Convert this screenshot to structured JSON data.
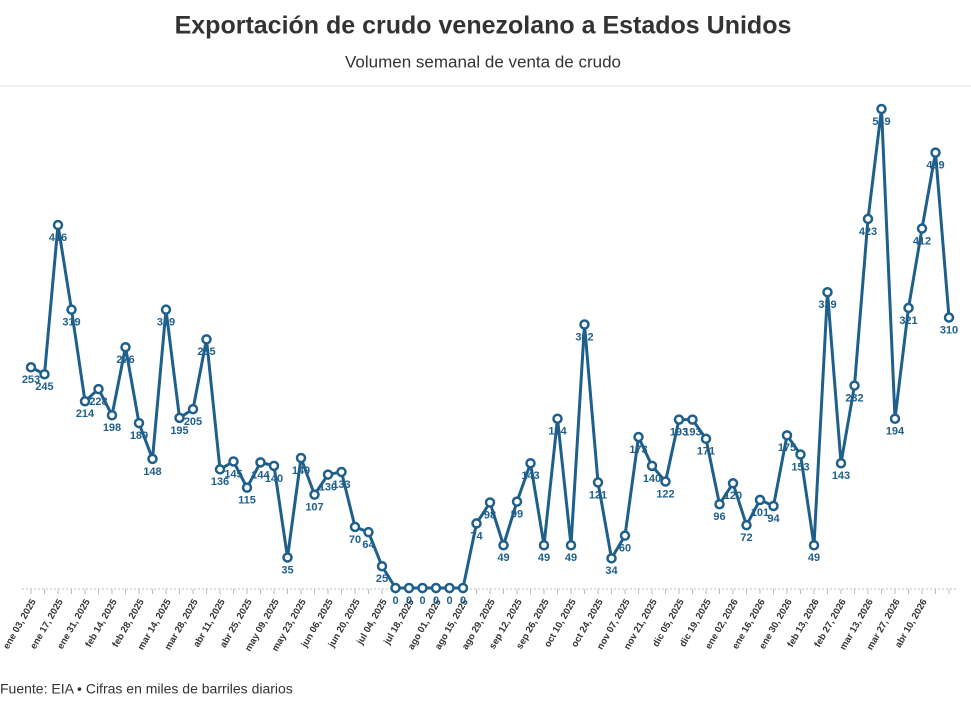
{
  "chart_data": {
    "type": "line",
    "title": "Exportación de crudo venezolano a Estados Unidos",
    "subtitle": "Volumen semanal de venta de crudo",
    "source": "Fuente: EIA • Cifras en miles de barriles diarios",
    "color": "#1f5f8b",
    "categories": [
      "ene 03, 2025",
      null,
      "ene 17, 2025",
      null,
      "ene 31, 2025",
      null,
      "feb 14, 2025",
      null,
      "feb 28, 2025",
      null,
      "mar 14, 2025",
      null,
      "mar 28, 2025",
      null,
      "abr 11, 2025",
      null,
      "abr 25, 2025",
      null,
      "may 09, 2025",
      null,
      "may 23, 2025",
      null,
      "jun 06, 2025",
      null,
      "jun 20, 2025",
      null,
      "jul 04, 2025",
      null,
      "jul 18, 2025",
      null,
      "ago 01, 2025",
      null,
      "ago 15, 2025",
      null,
      "ago 29, 2025",
      null,
      "sep 12, 2025",
      null,
      "sep 26, 2025",
      null,
      "oct 10, 2025",
      null,
      "oct 24, 2025",
      null,
      "nov 07, 2025",
      null,
      "nov 21, 2025",
      null,
      "dic 05, 2025",
      null,
      "dic 19, 2025",
      null,
      "ene 02, 2026",
      null,
      "ene 16, 2026",
      null,
      "ene 30, 2026",
      null,
      "feb 13, 2026",
      null,
      "feb 27, 2026",
      null,
      "mar 13, 2026",
      null,
      "mar 27, 2026",
      null,
      "abr 10, 2026",
      null,
      null
    ],
    "values": [
      253,
      245,
      416,
      319,
      214,
      228,
      198,
      276,
      189,
      148,
      319,
      195,
      205,
      285,
      136,
      145,
      115,
      144,
      140,
      35,
      149,
      107,
      130,
      133,
      70,
      64,
      25,
      0,
      0,
      0,
      0,
      0,
      0,
      74,
      98,
      49,
      99,
      143,
      49,
      194,
      49,
      302,
      121,
      34,
      60,
      173,
      140,
      122,
      193,
      193,
      171,
      96,
      120,
      72,
      101,
      94,
      175,
      153,
      49,
      339,
      143,
      232,
      423,
      549,
      194,
      321,
      412,
      499,
      310
    ],
    "ylim": [
      0,
      549
    ]
  }
}
